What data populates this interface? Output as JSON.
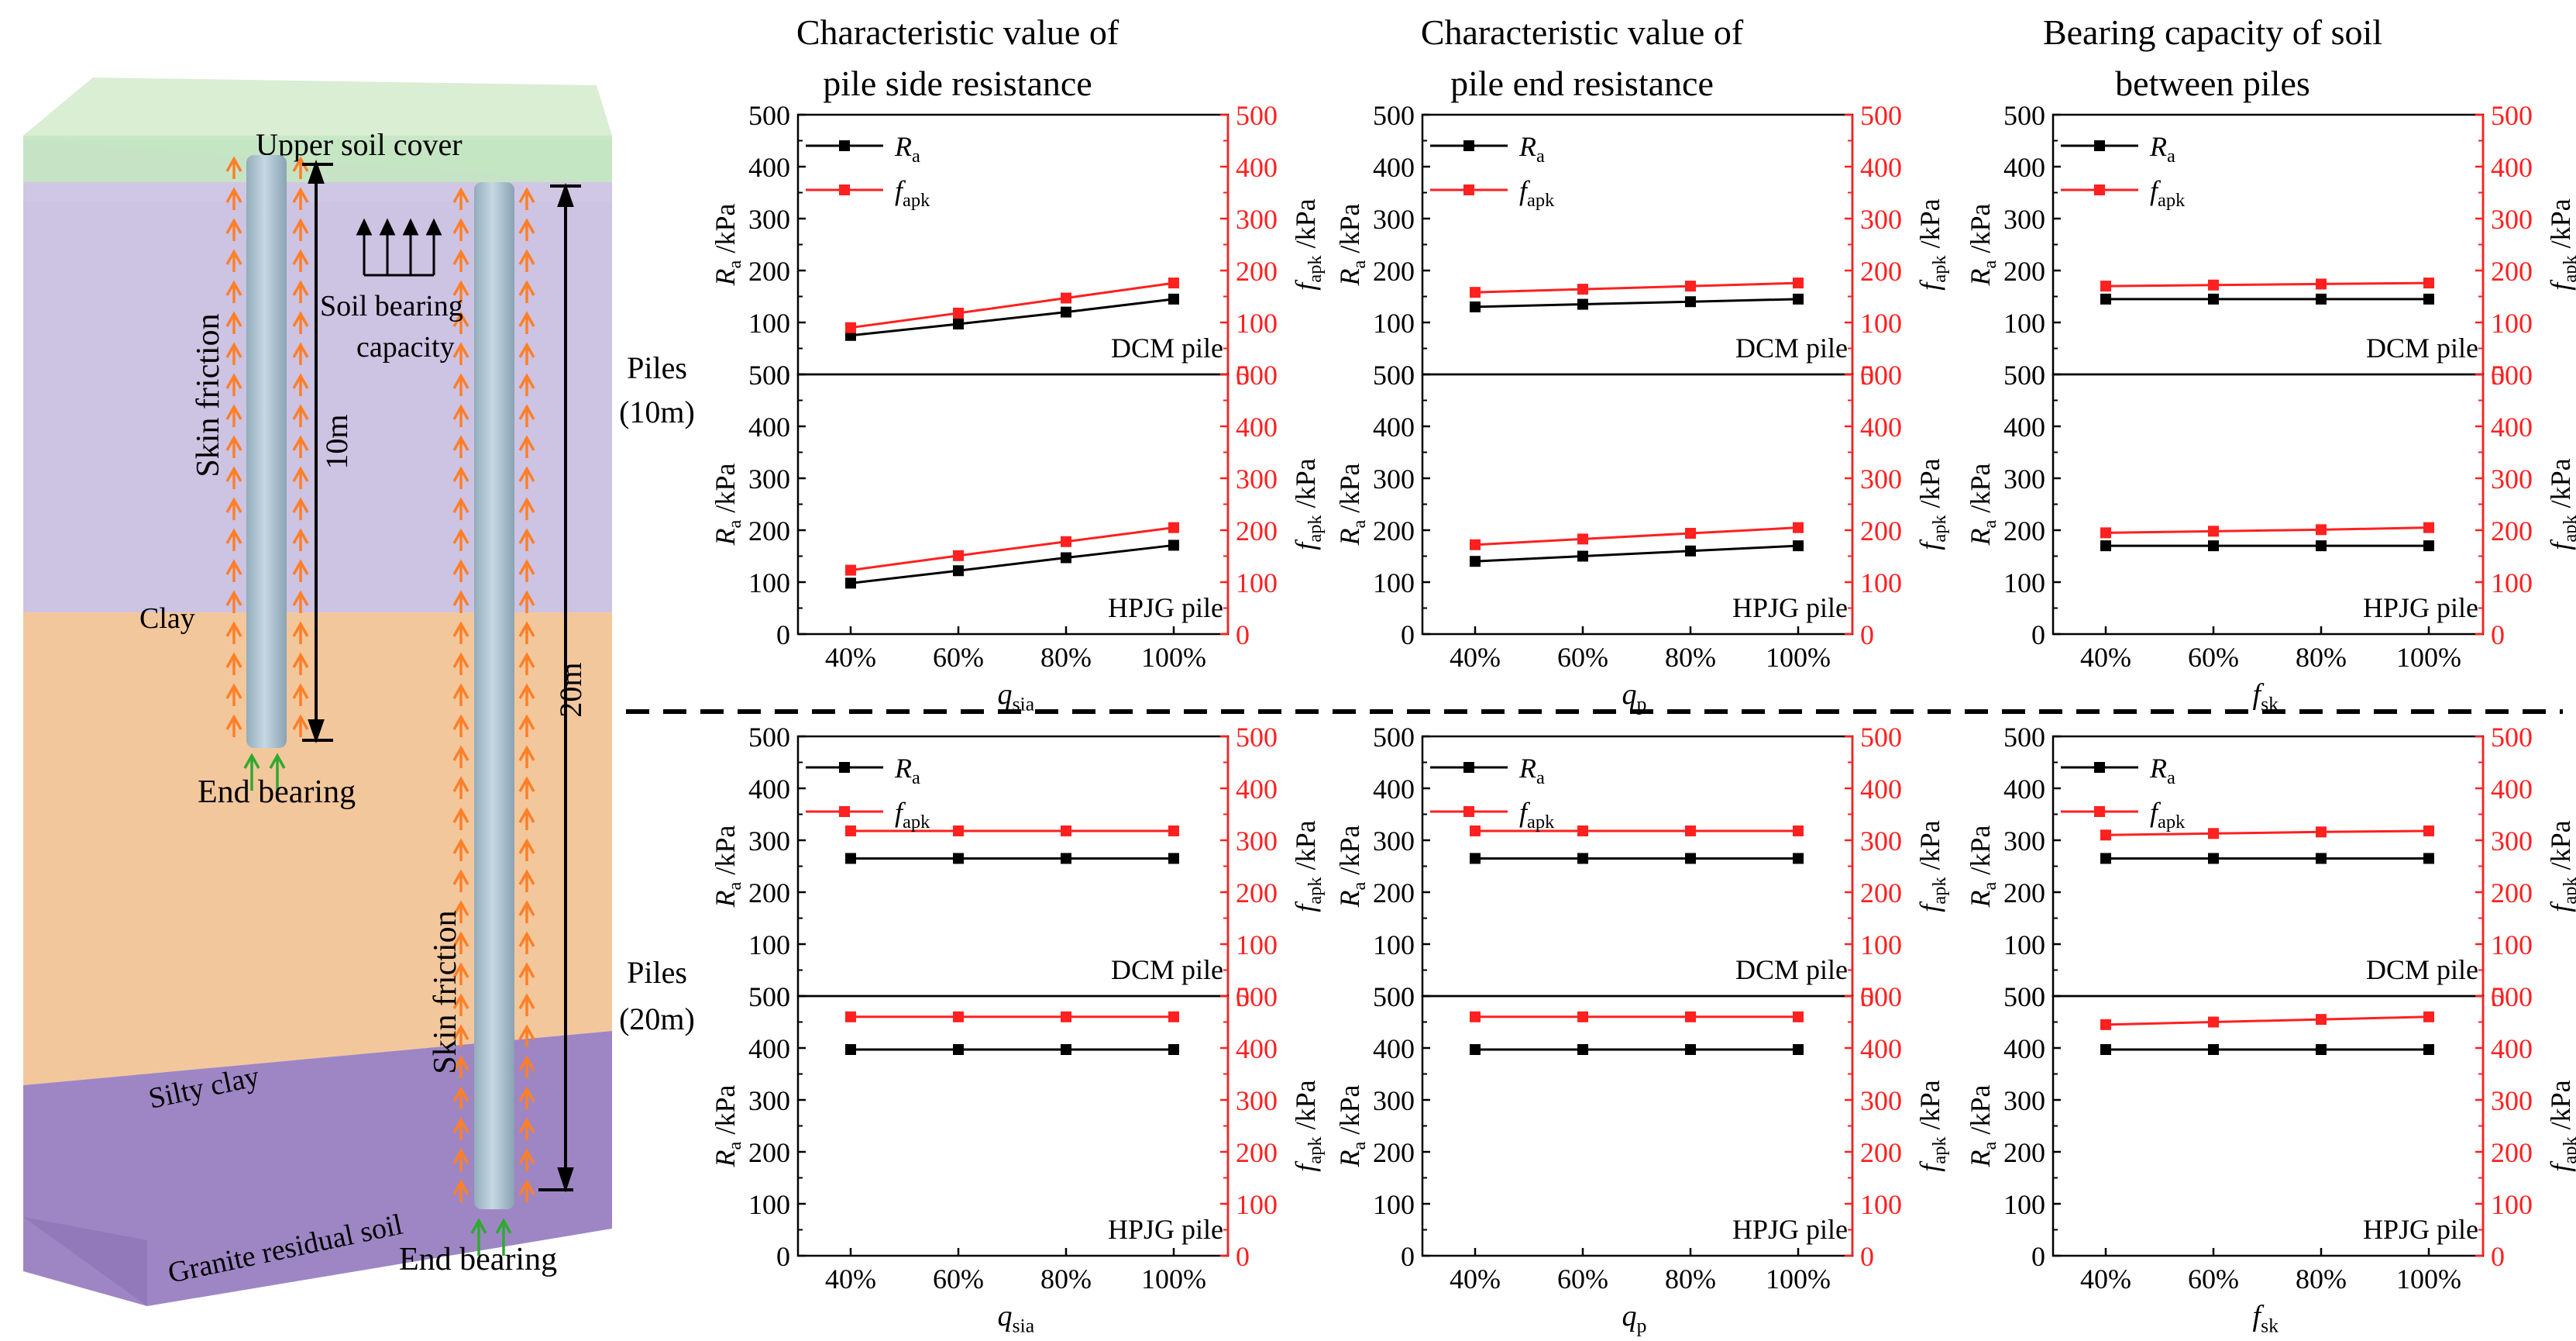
{
  "colors": {
    "ra": "#000000",
    "fapk": "#ff2020",
    "arrow_orange": "#ff7f27",
    "arrow_green": "#2eaa2e",
    "layer_cover": "#b6e1b6",
    "layer_clay": "#c9bfe0",
    "layer_silty": "#f4c193",
    "layer_granite": "#9d7fc2",
    "pile": "#a7bfce"
  },
  "diagram": {
    "layers": {
      "cover": "Upper soil cover",
      "clay": "Clay",
      "silty": "Silty clay",
      "granite": "Granite residual soil"
    },
    "labels": {
      "skin_friction_short": "Skin friction",
      "skin_friction_long": "Skin friction",
      "soil_bearing_1": "Soil bearing",
      "soil_bearing_2": "capacity",
      "end_bearing_short": "End bearing",
      "end_bearing_long": "End bearing",
      "len_short": "10m",
      "len_long": "20m"
    }
  },
  "columns": [
    {
      "line1": "Characteristic value of",
      "line2": "pile side resistance"
    },
    {
      "line1": "Characteristic value of",
      "line2": "pile end resistance"
    },
    {
      "line1": "Bearing capacity of soil",
      "line2": "between piles"
    }
  ],
  "rows": [
    {
      "line1": "Piles",
      "line2": "(10m)"
    },
    {
      "line1": "Piles",
      "line2": "(20m)"
    }
  ],
  "axis_text": {
    "ra_main": "R",
    "ra_sub": "a",
    "fapk_main": "f",
    "fapk_sub": "apk",
    "unit": " /kPa"
  },
  "chart_data": [
    {
      "type": "line",
      "id": "r1c1",
      "x": [
        "40%",
        "60%",
        "80%",
        "100%"
      ],
      "xlabel": {
        "main": "q",
        "sub": "sia"
      },
      "ylim": [
        0,
        500
      ],
      "yticks": [
        0,
        100,
        200,
        300,
        400,
        500
      ],
      "panels": [
        {
          "label": "DCM pile",
          "series": [
            {
              "name": "Ra",
              "values": [
                75,
                97,
                120,
                145
              ]
            },
            {
              "name": "fapk",
              "values": [
                90,
                118,
                147,
                176
              ]
            }
          ]
        },
        {
          "label": "HPJG pile",
          "series": [
            {
              "name": "Ra",
              "values": [
                98,
                122,
                147,
                171
              ]
            },
            {
              "name": "fapk",
              "values": [
                123,
                151,
                178,
                205
              ]
            }
          ]
        }
      ]
    },
    {
      "type": "line",
      "id": "r1c2",
      "x": [
        "40%",
        "60%",
        "80%",
        "100%"
      ],
      "xlabel": {
        "main": "q",
        "sub": "p"
      },
      "ylim": [
        0,
        500
      ],
      "yticks": [
        0,
        100,
        200,
        300,
        400,
        500
      ],
      "panels": [
        {
          "label": "DCM pile",
          "series": [
            {
              "name": "Ra",
              "values": [
                130,
                135,
                140,
                145
              ]
            },
            {
              "name": "fapk",
              "values": [
                158,
                164,
                170,
                176
              ]
            }
          ]
        },
        {
          "label": "HPJG pile",
          "series": [
            {
              "name": "Ra",
              "values": [
                140,
                150,
                160,
                170
              ]
            },
            {
              "name": "fapk",
              "values": [
                172,
                183,
                194,
                205
              ]
            }
          ]
        }
      ]
    },
    {
      "type": "line",
      "id": "r1c3",
      "x": [
        "40%",
        "60%",
        "80%",
        "100%"
      ],
      "xlabel": {
        "main": "f",
        "sub": "sk"
      },
      "ylim": [
        0,
        500
      ],
      "yticks": [
        0,
        100,
        200,
        300,
        400,
        500
      ],
      "panels": [
        {
          "label": "DCM pile",
          "series": [
            {
              "name": "Ra",
              "values": [
                145,
                145,
                145,
                145
              ]
            },
            {
              "name": "fapk",
              "values": [
                170,
                172,
                174,
                176
              ]
            }
          ]
        },
        {
          "label": "HPJG pile",
          "series": [
            {
              "name": "Ra",
              "values": [
                170,
                170,
                170,
                170
              ]
            },
            {
              "name": "fapk",
              "values": [
                195,
                198,
                201,
                205
              ]
            }
          ]
        }
      ]
    },
    {
      "type": "line",
      "id": "r2c1",
      "x": [
        "40%",
        "60%",
        "80%",
        "100%"
      ],
      "xlabel": {
        "main": "q",
        "sub": "sia"
      },
      "ylim": [
        0,
        500
      ],
      "yticks": [
        0,
        100,
        200,
        300,
        400,
        500
      ],
      "panels": [
        {
          "label": "DCM pile",
          "series": [
            {
              "name": "Ra",
              "values": [
                265,
                265,
                265,
                265
              ]
            },
            {
              "name": "fapk",
              "values": [
                318,
                318,
                318,
                318
              ]
            }
          ]
        },
        {
          "label": "HPJG pile",
          "series": [
            {
              "name": "Ra",
              "values": [
                397,
                397,
                397,
                397
              ]
            },
            {
              "name": "fapk",
              "values": [
                460,
                460,
                460,
                460
              ]
            }
          ]
        }
      ]
    },
    {
      "type": "line",
      "id": "r2c2",
      "x": [
        "40%",
        "60%",
        "80%",
        "100%"
      ],
      "xlabel": {
        "main": "q",
        "sub": "p"
      },
      "ylim": [
        0,
        500
      ],
      "yticks": [
        0,
        100,
        200,
        300,
        400,
        500
      ],
      "panels": [
        {
          "label": "DCM pile",
          "series": [
            {
              "name": "Ra",
              "values": [
                265,
                265,
                265,
                265
              ]
            },
            {
              "name": "fapk",
              "values": [
                318,
                318,
                318,
                318
              ]
            }
          ]
        },
        {
          "label": "HPJG pile",
          "series": [
            {
              "name": "Ra",
              "values": [
                397,
                397,
                397,
                397
              ]
            },
            {
              "name": "fapk",
              "values": [
                460,
                460,
                460,
                460
              ]
            }
          ]
        }
      ]
    },
    {
      "type": "line",
      "id": "r2c3",
      "x": [
        "40%",
        "60%",
        "80%",
        "100%"
      ],
      "xlabel": {
        "main": "f",
        "sub": "sk"
      },
      "ylim": [
        0,
        500
      ],
      "yticks": [
        0,
        100,
        200,
        300,
        400,
        500
      ],
      "panels": [
        {
          "label": "DCM pile",
          "series": [
            {
              "name": "Ra",
              "values": [
                265,
                265,
                265,
                265
              ]
            },
            {
              "name": "fapk",
              "values": [
                310,
                313,
                316,
                318
              ]
            }
          ]
        },
        {
          "label": "HPJG pile",
          "series": [
            {
              "name": "Ra",
              "values": [
                397,
                397,
                397,
                397
              ]
            },
            {
              "name": "fapk",
              "values": [
                445,
                450,
                455,
                460
              ]
            }
          ]
        }
      ]
    }
  ]
}
